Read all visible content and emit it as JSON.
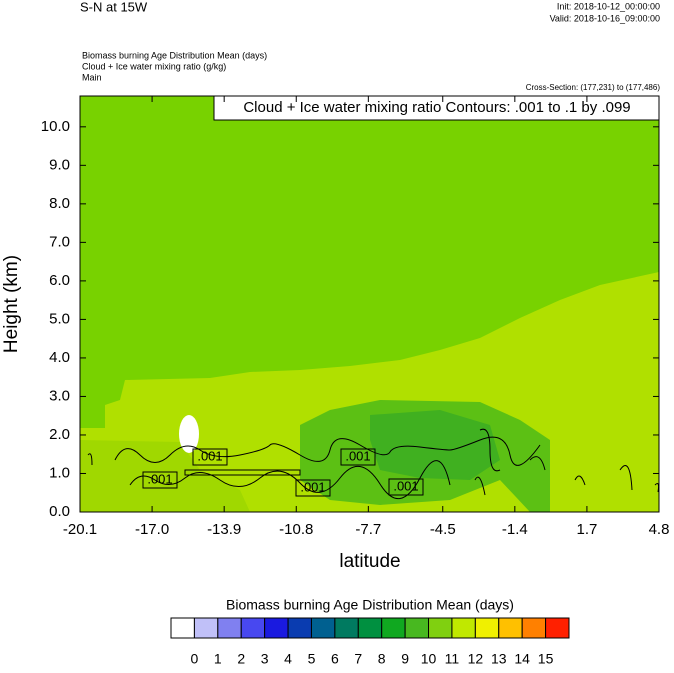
{
  "chart_data": {
    "type": "contour",
    "title": "S-N at 15W",
    "init": "Init: 2018-10-12_00:00:00",
    "valid": "Valid: 2018-10-16_09:00:00",
    "fields": [
      "Biomass burning Age Distribution Mean   (days)",
      "Cloud + Ice water mixing ratio   (g/kg)",
      "Main"
    ],
    "cross_section": "Cross-Section: (177,231) to (177,486)",
    "contour_note": "Cloud + Ice water mixing ratio Contours: .001 to .1 by .099",
    "contour_labels": [
      ".001",
      ".001",
      ".001",
      ".001",
      ".001"
    ],
    "x_label": "latitude",
    "y_label": "Height (km)",
    "xlim": [
      -20.1,
      4.8
    ],
    "xticks": [
      -20.1,
      {
        "value": -17,
        "label": "-17.0"
      },
      -13.9,
      -10.8,
      -7.7,
      -4.5,
      -1.4,
      1.7,
      4.8
    ],
    "ylim": [
      0,
      10.8
    ],
    "yticks": [
      {
        "value": 0,
        "label": "0.0"
      },
      {
        "value": 1,
        "label": "1.0"
      },
      {
        "value": 2,
        "label": "2.0"
      },
      {
        "value": 3,
        "label": "3.0"
      },
      {
        "value": 4,
        "label": "4.0"
      },
      {
        "value": 5,
        "label": "5.0"
      },
      {
        "value": 6,
        "label": "6.0"
      },
      {
        "value": 7,
        "label": "7.0"
      },
      {
        "value": 8,
        "label": "8.0"
      },
      {
        "value": 9,
        "label": "9.0"
      },
      {
        "value": 10,
        "label": "10.0"
      }
    ],
    "colorbar": {
      "title": "Biomass burning Age Distribution Mean  (days)",
      "levels": [
        0,
        1,
        2,
        3,
        4,
        5,
        6,
        7,
        8,
        9,
        10,
        11,
        12,
        13,
        14,
        15
      ],
      "colors": [
        "#ffffff",
        "#c0c0f8",
        "#8080f0",
        "#4848f0",
        "#1a1ae0",
        "#0a3cb0",
        "#006090",
        "#007a60",
        "#009040",
        "#10a820",
        "#48b820",
        "#80d010",
        "#c0e800",
        "#f0f000",
        "#ffc000",
        "#ff8000",
        "#ff2000"
      ]
    }
  }
}
